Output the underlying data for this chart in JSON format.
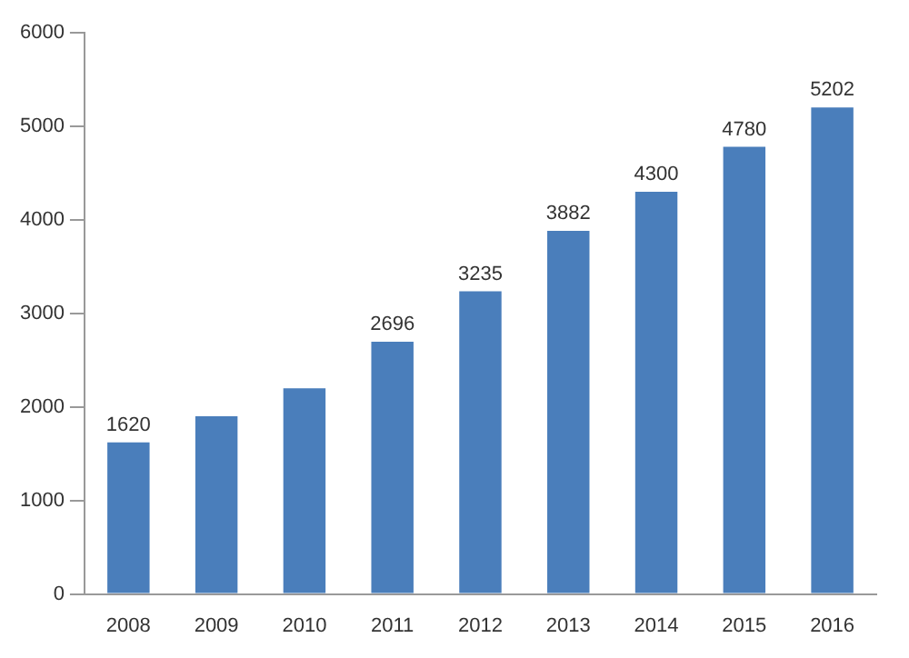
{
  "chart_data": {
    "type": "bar",
    "categories": [
      "2008",
      "2009",
      "2010",
      "2011",
      "2012",
      "2013",
      "2014",
      "2015",
      "2016"
    ],
    "values": [
      1620,
      1900,
      2200,
      2696,
      3235,
      3882,
      4300,
      4780,
      5202
    ],
    "value_labels": [
      "1620",
      null,
      null,
      "2696",
      "3235",
      "3882",
      "4300",
      "4780",
      "5202"
    ],
    "color": "#4a7ebb",
    "ylim": [
      0,
      6000
    ],
    "yticks": [
      0,
      1000,
      2000,
      3000,
      4000,
      5000,
      6000
    ],
    "grid": false,
    "legend": false
  }
}
